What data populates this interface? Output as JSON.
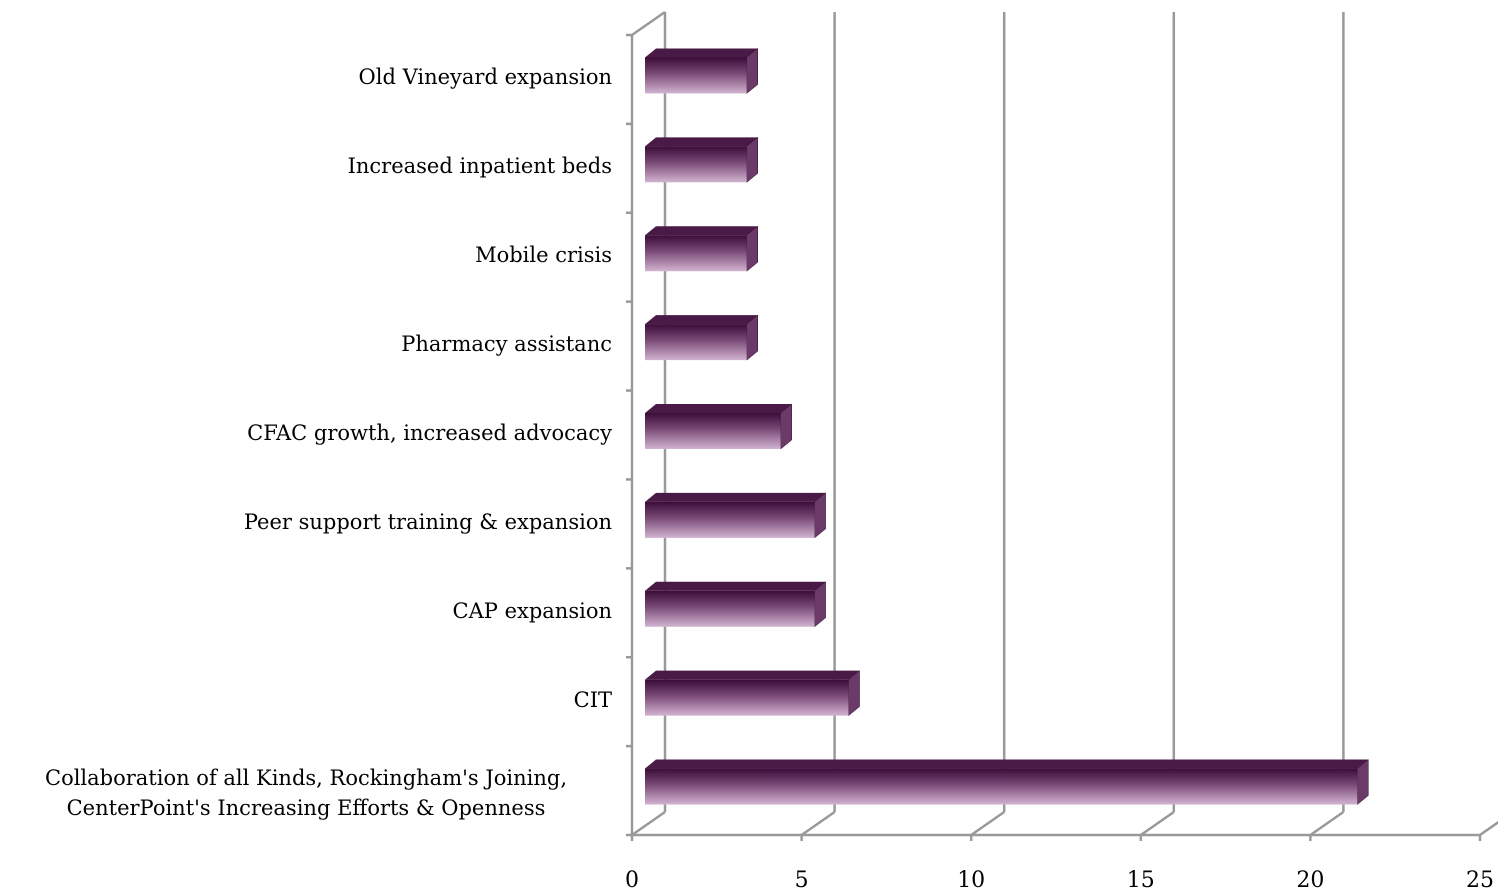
{
  "chart_data": {
    "type": "bar",
    "orientation": "horizontal",
    "categories": [
      "Collaboration of all Kinds, Rockingham's Joining, CenterPoint's Increasing Efforts & Openness",
      "CIT",
      "CAP expansion",
      "Peer support training & expansion",
      "CFAC growth, increased advocacy",
      "Pharmacy assistanc",
      "Mobile crisis",
      "Increased inpatient beds",
      "Old Vineyard expansion"
    ],
    "values": [
      21,
      6,
      5,
      5,
      4,
      3,
      3,
      3,
      3
    ],
    "color": "#6b3a68",
    "xlim": [
      0,
      25
    ],
    "xticks": [
      0,
      5,
      10,
      15,
      20,
      25
    ],
    "grid": true
  }
}
